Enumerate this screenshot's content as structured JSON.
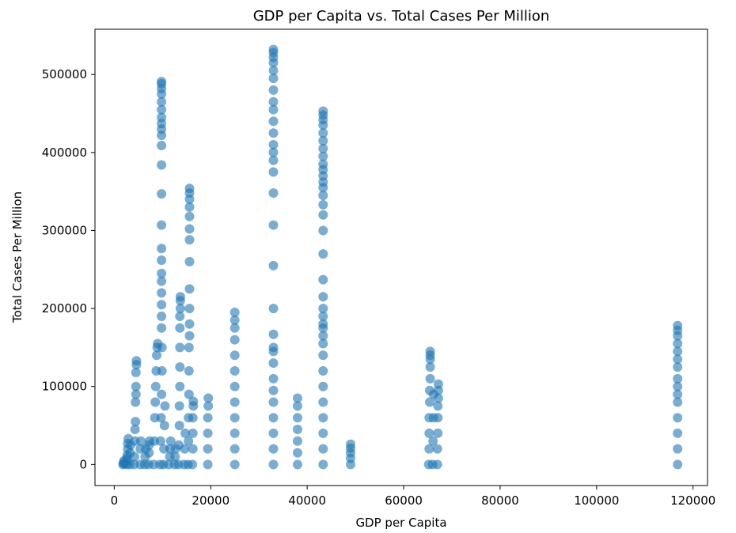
{
  "chart_data": {
    "type": "scatter",
    "title": "GDP per Capita vs. Total Cases Per Million",
    "xlabel": "GDP per Capita",
    "ylabel": "Total Cases Per Million",
    "xlim": [
      -4000,
      123000
    ],
    "ylim": [
      -27000,
      558000
    ],
    "xticks": [
      0,
      20000,
      40000,
      60000,
      80000,
      100000,
      120000
    ],
    "yticks": [
      0,
      100000,
      200000,
      300000,
      400000,
      500000
    ],
    "xtick_labels": [
      "0",
      "20000",
      "40000",
      "60000",
      "80000",
      "100000",
      "120000"
    ],
    "ytick_labels": [
      "0",
      "100000",
      "200000",
      "300000",
      "400000",
      "500000"
    ],
    "grid": false,
    "marker_color": "#1f77b4",
    "marker_alpha": 0.6,
    "series": [
      {
        "points": [
          [
            1800,
            0
          ],
          [
            1900,
            2000
          ],
          [
            2000,
            4500
          ],
          [
            2100,
            1000
          ],
          [
            2600,
            0
          ],
          [
            2700,
            5000
          ],
          [
            2700,
            12000
          ],
          [
            2800,
            20000
          ],
          [
            2800,
            27000
          ],
          [
            2900,
            33000
          ],
          [
            2600,
            8000
          ],
          [
            3200,
            0
          ],
          [
            3300,
            15000
          ],
          [
            3400,
            25000
          ],
          [
            4100,
            0
          ],
          [
            4200,
            10000
          ],
          [
            4300,
            30000
          ],
          [
            4400,
            55000
          ],
          [
            4400,
            80000
          ],
          [
            4500,
            100000
          ],
          [
            4500,
            118000
          ],
          [
            4600,
            128000
          ],
          [
            4600,
            133000
          ],
          [
            4300,
            45000
          ],
          [
            4500,
            90000
          ],
          [
            5400,
            0
          ],
          [
            5400,
            20000
          ],
          [
            5500,
            30000
          ],
          [
            6300,
            0
          ],
          [
            6400,
            10000
          ],
          [
            6500,
            20000
          ],
          [
            7100,
            0
          ],
          [
            7200,
            15000
          ],
          [
            7300,
            30000
          ],
          [
            7200,
            25000
          ],
          [
            8200,
            0
          ],
          [
            8300,
            30000
          ],
          [
            8400,
            60000
          ],
          [
            8500,
            80000
          ],
          [
            8600,
            100000
          ],
          [
            8700,
            120000
          ],
          [
            8800,
            140000
          ],
          [
            8900,
            150000
          ],
          [
            9000,
            155000
          ],
          [
            9500,
            0
          ],
          [
            9600,
            30000
          ],
          [
            9700,
            60000
          ],
          [
            9800,
            90000
          ],
          [
            9900,
            120000
          ],
          [
            9900,
            150000
          ],
          [
            9800,
            175000
          ],
          [
            9800,
            190000
          ],
          [
            9800,
            205000
          ],
          [
            9800,
            220000
          ],
          [
            9800,
            235000
          ],
          [
            9800,
            245000
          ],
          [
            9800,
            262000
          ],
          [
            9800,
            277000
          ],
          [
            9800,
            307000
          ],
          [
            9800,
            347000
          ],
          [
            9800,
            384000
          ],
          [
            9800,
            409000
          ],
          [
            9800,
            422000
          ],
          [
            9800,
            430000
          ],
          [
            9800,
            437000
          ],
          [
            9800,
            445000
          ],
          [
            9800,
            455000
          ],
          [
            9800,
            465000
          ],
          [
            9800,
            475000
          ],
          [
            9800,
            482000
          ],
          [
            9800,
            488000
          ],
          [
            9800,
            491000
          ],
          [
            10200,
            0
          ],
          [
            10300,
            20000
          ],
          [
            10400,
            50000
          ],
          [
            10500,
            75000
          ],
          [
            11300,
            0
          ],
          [
            11500,
            10000
          ],
          [
            11600,
            20000
          ],
          [
            11700,
            30000
          ],
          [
            12500,
            0
          ],
          [
            12600,
            10000
          ],
          [
            12700,
            20000
          ],
          [
            13300,
            0
          ],
          [
            13400,
            25000
          ],
          [
            13500,
            50000
          ],
          [
            13500,
            75000
          ],
          [
            13600,
            100000
          ],
          [
            13600,
            125000
          ],
          [
            13600,
            150000
          ],
          [
            13600,
            175000
          ],
          [
            13600,
            190000
          ],
          [
            13700,
            200000
          ],
          [
            13700,
            210000
          ],
          [
            13700,
            215000
          ],
          [
            14500,
            0
          ],
          [
            14600,
            20000
          ],
          [
            14700,
            40000
          ],
          [
            15300,
            0
          ],
          [
            15400,
            30000
          ],
          [
            15400,
            60000
          ],
          [
            15500,
            90000
          ],
          [
            15500,
            120000
          ],
          [
            15500,
            150000
          ],
          [
            15600,
            165000
          ],
          [
            15600,
            180000
          ],
          [
            15600,
            200000
          ],
          [
            15600,
            225000
          ],
          [
            15600,
            260000
          ],
          [
            15600,
            288000
          ],
          [
            15600,
            302000
          ],
          [
            15600,
            318000
          ],
          [
            15600,
            330000
          ],
          [
            15600,
            340000
          ],
          [
            15600,
            348000
          ],
          [
            15600,
            354000
          ],
          [
            16200,
            0
          ],
          [
            16300,
            20000
          ],
          [
            16300,
            40000
          ],
          [
            16300,
            60000
          ],
          [
            16400,
            75000
          ],
          [
            16400,
            81000
          ],
          [
            19400,
            0
          ],
          [
            19400,
            20000
          ],
          [
            19400,
            40000
          ],
          [
            19400,
            60000
          ],
          [
            19500,
            75000
          ],
          [
            19500,
            85000
          ],
          [
            25000,
            0
          ],
          [
            25000,
            20000
          ],
          [
            25000,
            40000
          ],
          [
            25000,
            60000
          ],
          [
            25000,
            80000
          ],
          [
            25000,
            100000
          ],
          [
            25000,
            120000
          ],
          [
            25000,
            140000
          ],
          [
            25000,
            160000
          ],
          [
            25000,
            175000
          ],
          [
            25000,
            185000
          ],
          [
            25000,
            195000
          ],
          [
            33000,
            0
          ],
          [
            33000,
            20000
          ],
          [
            33000,
            40000
          ],
          [
            33000,
            60000
          ],
          [
            33000,
            80000
          ],
          [
            33000,
            95000
          ],
          [
            33000,
            110000
          ],
          [
            33000,
            130000
          ],
          [
            33000,
            145000
          ],
          [
            33000,
            150000
          ],
          [
            33000,
            167000
          ],
          [
            33000,
            200000
          ],
          [
            33000,
            255000
          ],
          [
            33000,
            307000
          ],
          [
            33000,
            348000
          ],
          [
            33000,
            375000
          ],
          [
            33000,
            390000
          ],
          [
            33000,
            400000
          ],
          [
            33000,
            410000
          ],
          [
            33000,
            425000
          ],
          [
            33000,
            440000
          ],
          [
            33000,
            455000
          ],
          [
            33000,
            465000
          ],
          [
            33000,
            480000
          ],
          [
            33000,
            495000
          ],
          [
            33000,
            505000
          ],
          [
            33000,
            515000
          ],
          [
            33000,
            522000
          ],
          [
            33000,
            528000
          ],
          [
            33000,
            532000
          ],
          [
            38000,
            0
          ],
          [
            38000,
            15000
          ],
          [
            38000,
            30000
          ],
          [
            38000,
            45000
          ],
          [
            38000,
            60000
          ],
          [
            38000,
            75000
          ],
          [
            38000,
            85000
          ],
          [
            43300,
            0
          ],
          [
            43300,
            20000
          ],
          [
            43300,
            40000
          ],
          [
            43300,
            60000
          ],
          [
            43300,
            80000
          ],
          [
            43300,
            100000
          ],
          [
            43300,
            120000
          ],
          [
            43300,
            140000
          ],
          [
            43300,
            155000
          ],
          [
            43300,
            165000
          ],
          [
            43300,
            175000
          ],
          [
            43300,
            180000
          ],
          [
            43300,
            190000
          ],
          [
            43300,
            200000
          ],
          [
            43300,
            215000
          ],
          [
            43300,
            237000
          ],
          [
            43300,
            270000
          ],
          [
            43300,
            300000
          ],
          [
            43300,
            320000
          ],
          [
            43300,
            333000
          ],
          [
            43300,
            345000
          ],
          [
            43300,
            355000
          ],
          [
            43300,
            362000
          ],
          [
            43300,
            370000
          ],
          [
            43300,
            378000
          ],
          [
            43300,
            385000
          ],
          [
            43300,
            395000
          ],
          [
            43300,
            405000
          ],
          [
            43300,
            415000
          ],
          [
            43300,
            425000
          ],
          [
            43300,
            435000
          ],
          [
            43300,
            442000
          ],
          [
            43300,
            448000
          ],
          [
            43300,
            453000
          ],
          [
            49000,
            0
          ],
          [
            49000,
            8000
          ],
          [
            49000,
            15000
          ],
          [
            49000,
            21000
          ],
          [
            49000,
            26000
          ],
          [
            65200,
            0
          ],
          [
            65300,
            20000
          ],
          [
            65300,
            40000
          ],
          [
            65300,
            60000
          ],
          [
            65400,
            80000
          ],
          [
            65400,
            95000
          ],
          [
            65500,
            110000
          ],
          [
            65500,
            125000
          ],
          [
            65500,
            135000
          ],
          [
            65500,
            140000
          ],
          [
            65500,
            145000
          ],
          [
            66000,
            0
          ],
          [
            66100,
            30000
          ],
          [
            66200,
            60000
          ],
          [
            66200,
            90000
          ],
          [
            67000,
            0
          ],
          [
            67000,
            20000
          ],
          [
            67100,
            40000
          ],
          [
            67100,
            60000
          ],
          [
            67100,
            75000
          ],
          [
            67200,
            85000
          ],
          [
            67200,
            95000
          ],
          [
            67200,
            103000
          ],
          [
            116800,
            0
          ],
          [
            116800,
            20000
          ],
          [
            116800,
            40000
          ],
          [
            116800,
            60000
          ],
          [
            116800,
            80000
          ],
          [
            116800,
            90000
          ],
          [
            116800,
            100000
          ],
          [
            116800,
            110000
          ],
          [
            116800,
            125000
          ],
          [
            116800,
            135000
          ],
          [
            116800,
            145000
          ],
          [
            116800,
            155000
          ],
          [
            116800,
            165000
          ],
          [
            116800,
            172000
          ],
          [
            116800,
            178000
          ]
        ]
      }
    ]
  }
}
